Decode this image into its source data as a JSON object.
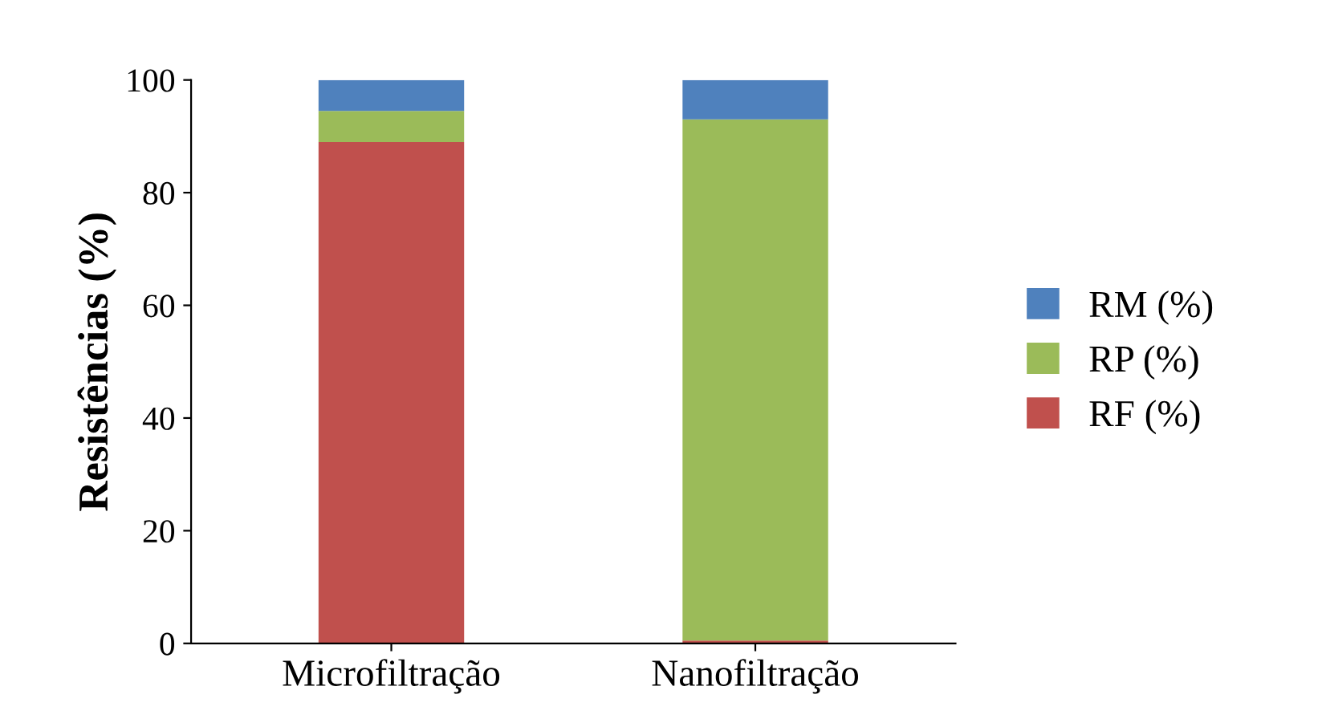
{
  "chart_data": {
    "type": "bar",
    "stacked": true,
    "ylabel": "Resistências (%)",
    "categories": [
      "Microfiltração",
      "Nanofiltração"
    ],
    "series": [
      {
        "name": "RF (%)",
        "color": "#c0504d",
        "values": [
          89,
          0.5
        ]
      },
      {
        "name": "RP (%)",
        "color": "#9bbb59",
        "values": [
          5.5,
          92.5
        ]
      },
      {
        "name": "RM (%)",
        "color": "#4f81bd",
        "values": [
          5.5,
          7
        ]
      }
    ],
    "ylim": [
      0,
      100
    ],
    "yticks": [
      0,
      20,
      40,
      60,
      80,
      100
    ],
    "grid": false,
    "legend": "right"
  }
}
